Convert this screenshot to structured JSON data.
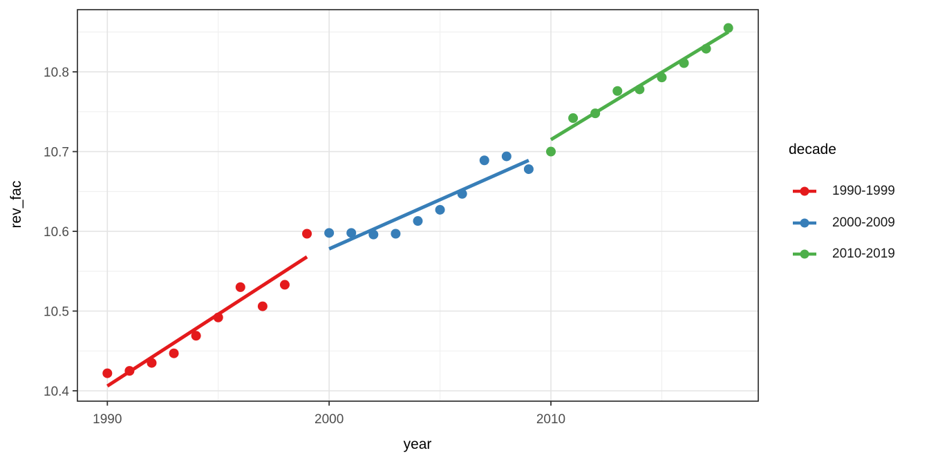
{
  "chart_data": {
    "type": "scatter",
    "title": "",
    "xlabel": "year",
    "ylabel": "rev_fac",
    "xlim": [
      1988.65,
      2019.35
    ],
    "ylim": [
      10.387,
      10.878
    ],
    "grid": true,
    "legend_position": "right",
    "legend_title": "decade",
    "x_major_ticks": [
      1990,
      2000,
      2010
    ],
    "x_major_tick_labels": [
      "1990",
      "2000",
      "2010"
    ],
    "x_minor_ticks": [
      1995,
      2005,
      2015
    ],
    "y_major_ticks": [
      10.4,
      10.5,
      10.6,
      10.7,
      10.8
    ],
    "y_major_tick_labels": [
      "10.4",
      "10.5",
      "10.6",
      "10.7",
      "10.8"
    ],
    "y_minor_ticks": [
      10.45,
      10.55,
      10.65,
      10.75,
      10.85
    ],
    "series": [
      {
        "name": "1990-1999",
        "color": "#E41A1C",
        "x": [
          1990,
          1991,
          1992,
          1993,
          1994,
          1995,
          1996,
          1997,
          1998,
          1999
        ],
        "y": [
          10.422,
          10.425,
          10.435,
          10.447,
          10.469,
          10.492,
          10.53,
          10.506,
          10.533,
          10.597
        ],
        "trend_line": {
          "x1": 1990,
          "y1": 10.406,
          "x2": 1999,
          "y2": 10.568
        }
      },
      {
        "name": "2000-2009",
        "color": "#377EB8",
        "x": [
          2000,
          2001,
          2002,
          2003,
          2004,
          2005,
          2006,
          2007,
          2008,
          2009
        ],
        "y": [
          10.598,
          10.598,
          10.596,
          10.597,
          10.613,
          10.627,
          10.647,
          10.689,
          10.694,
          10.678
        ],
        "trend_line": {
          "x1": 2000,
          "y1": 10.578,
          "x2": 2009,
          "y2": 10.689
        }
      },
      {
        "name": "2010-2019",
        "color": "#4DAF4A",
        "x": [
          2010,
          2011,
          2012,
          2013,
          2014,
          2015,
          2016,
          2017,
          2018
        ],
        "y": [
          10.7,
          10.742,
          10.748,
          10.776,
          10.778,
          10.793,
          10.811,
          10.829,
          10.855
        ],
        "trend_line": {
          "x1": 2010,
          "y1": 10.715,
          "x2": 2018,
          "y2": 10.85
        }
      }
    ],
    "styles": {
      "background": "#FFFFFF",
      "panel_background": "#FFFFFF",
      "panel_border_color": "#222222",
      "grid_major_color": "#E4E4E4",
      "grid_minor_color": "#EFEFEF",
      "tick_mark_color": "#333333",
      "tick_label_color": "#4D4D4D",
      "axis_title_color": "#000000",
      "point_radius": 7,
      "trend_line_width": 5
    }
  }
}
